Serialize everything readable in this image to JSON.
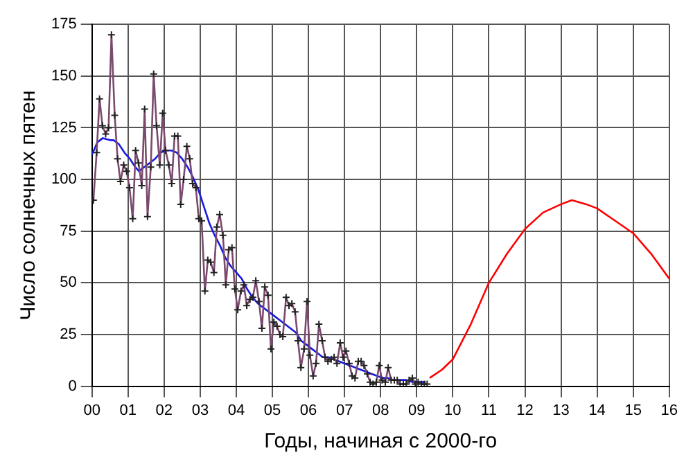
{
  "chart_data": {
    "type": "line",
    "xlabel": "Годы, начиная с 2000-го",
    "ylabel": "Число солнечных пятен",
    "xlim": [
      0,
      16
    ],
    "xticks": [
      {
        "value": 0,
        "label": "00"
      },
      {
        "value": 1,
        "label": "01"
      },
      {
        "value": 2,
        "label": "02"
      },
      {
        "value": 3,
        "label": "03"
      },
      {
        "value": 4,
        "label": "04"
      },
      {
        "value": 5,
        "label": "05"
      },
      {
        "value": 6,
        "label": "06"
      },
      {
        "value": 7,
        "label": "07"
      },
      {
        "value": 8,
        "label": "08"
      },
      {
        "value": 9,
        "label": "09"
      },
      {
        "value": 10,
        "label": "10"
      },
      {
        "value": 11,
        "label": "11"
      },
      {
        "value": 12,
        "label": "12"
      },
      {
        "value": 13,
        "label": "13"
      },
      {
        "value": 14,
        "label": "14"
      },
      {
        "value": 15,
        "label": "15"
      },
      {
        "value": 16,
        "label": "16"
      }
    ],
    "ylim": [
      0,
      175
    ],
    "yticks": [
      0,
      25,
      50,
      75,
      100,
      125,
      150,
      175
    ],
    "grid": true,
    "legend": false,
    "series": [
      {
        "color": "#7a4a6e",
        "marker": "cross",
        "x": [
          0.04,
          0.13,
          0.21,
          0.29,
          0.38,
          0.46,
          0.54,
          0.63,
          0.71,
          0.79,
          0.88,
          0.96,
          1.04,
          1.13,
          1.21,
          1.29,
          1.38,
          1.46,
          1.54,
          1.63,
          1.71,
          1.79,
          1.88,
          1.96,
          2.04,
          2.13,
          2.21,
          2.29,
          2.38,
          2.46,
          2.54,
          2.63,
          2.71,
          2.79,
          2.88,
          2.96,
          3.04,
          3.13,
          3.21,
          3.29,
          3.38,
          3.46,
          3.54,
          3.63,
          3.71,
          3.79,
          3.88,
          3.96,
          4.04,
          4.13,
          4.21,
          4.29,
          4.38,
          4.46,
          4.54,
          4.63,
          4.71,
          4.79,
          4.88,
          4.96,
          5.04,
          5.13,
          5.21,
          5.29,
          5.38,
          5.46,
          5.54,
          5.63,
          5.71,
          5.79,
          5.88,
          5.96,
          6.04,
          6.13,
          6.21,
          6.29,
          6.38,
          6.46,
          6.54,
          6.63,
          6.71,
          6.79,
          6.88,
          6.96,
          7.04,
          7.13,
          7.21,
          7.29,
          7.38,
          7.46,
          7.54,
          7.63,
          7.71,
          7.79,
          7.88,
          7.96,
          8.04,
          8.13,
          8.21,
          8.29,
          8.38,
          8.46,
          8.54,
          8.63,
          8.71,
          8.79,
          8.88,
          8.96,
          9.04,
          9.13,
          9.21,
          9.29
        ],
        "values": [
          90,
          113,
          139,
          126,
          122,
          125,
          170,
          131,
          110,
          99,
          107,
          104,
          96,
          81,
          114,
          108,
          97,
          134,
          82,
          106,
          151,
          126,
          107,
          132,
          114,
          107,
          98,
          121,
          121,
          88,
          100,
          116,
          110,
          98,
          96,
          81,
          80,
          46,
          61,
          60,
          55,
          77,
          83,
          73,
          49,
          66,
          67,
          47,
          37,
          46,
          49,
          39,
          42,
          43,
          51,
          41,
          28,
          48,
          44,
          18,
          31,
          29,
          25,
          24,
          43,
          39,
          40,
          36,
          22,
          9,
          18,
          41,
          15,
          5,
          11,
          30,
          22,
          14,
          12,
          13,
          14,
          11,
          21,
          14,
          17,
          11,
          5,
          4,
          12,
          12,
          10,
          6,
          2,
          1,
          2,
          10,
          3,
          2,
          9,
          3,
          3,
          3,
          1,
          1,
          1,
          3,
          4,
          1,
          2,
          1,
          1,
          1
        ]
      },
      {
        "color": "#1a1ae0",
        "marker": "none",
        "x": [
          0,
          0.15,
          0.3,
          0.5,
          0.6,
          0.75,
          0.9,
          1.05,
          1.2,
          1.3,
          1.45,
          1.6,
          1.75,
          1.9,
          2.05,
          2.2,
          2.35,
          2.5,
          2.65,
          2.8,
          2.95,
          3.1,
          3.25,
          3.4,
          3.55,
          3.7,
          3.85,
          4.0,
          4.15,
          4.3,
          4.45,
          4.6,
          4.75,
          4.9,
          5.05,
          5.2,
          5.35,
          5.5,
          5.65,
          5.8,
          5.95,
          6.1,
          6.25,
          6.4,
          6.55,
          6.7,
          6.85,
          7.0,
          7.15,
          7.3,
          7.45,
          7.6,
          7.75,
          7.9,
          8.05,
          8.2,
          8.35,
          8.5,
          8.7,
          8.9,
          9.1,
          9.25
        ],
        "values": [
          112,
          118,
          120,
          119,
          119,
          117,
          113,
          110,
          106,
          104,
          106,
          108,
          110,
          113,
          114,
          114,
          113,
          110,
          106,
          101,
          95,
          87,
          79,
          73,
          68,
          62,
          58,
          55,
          52,
          47,
          43,
          40,
          38,
          36,
          34,
          32,
          30,
          28,
          26,
          22,
          20,
          18,
          16,
          14,
          14,
          13,
          12,
          11,
          10,
          9,
          8,
          7,
          6,
          5,
          4,
          4,
          3,
          3,
          3,
          2,
          2,
          2
        ]
      },
      {
        "color": "#ff0000",
        "marker": "none",
        "x": [
          9.36,
          9.7,
          10,
          10.5,
          11,
          11.5,
          12,
          12.5,
          13,
          13.3,
          13.7,
          14,
          14.5,
          15,
          15.5,
          16
        ],
        "values": [
          4,
          8,
          13,
          30,
          50,
          64,
          76,
          84,
          88,
          90,
          88,
          86,
          80,
          74,
          64,
          52
        ]
      }
    ]
  }
}
